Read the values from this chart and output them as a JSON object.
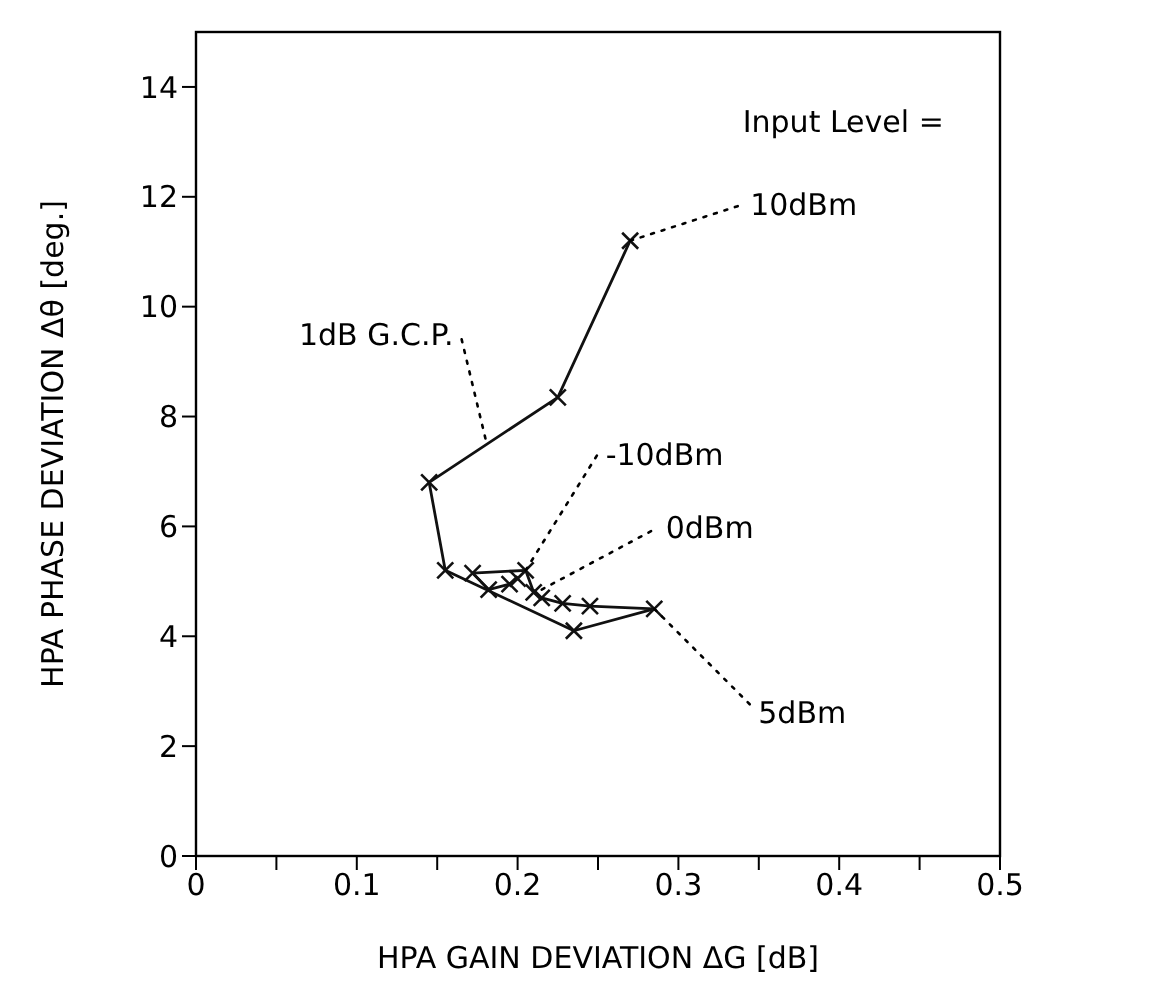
{
  "chart_data": {
    "type": "line",
    "xlabel": "HPA  GAIN  DEVIATION  ΔG  [dB]",
    "ylabel": "HPA  PHASE  DEVIATION  Δθ  [deg.]",
    "series": [
      {
        "color": "#111111",
        "x": [
          0.27,
          0.225,
          0.145,
          0.155,
          0.235,
          0.285,
          0.245,
          0.228,
          0.215,
          0.21,
          0.205,
          0.172,
          0.182,
          0.195,
          0.2
        ],
        "values": [
          11.2,
          8.35,
          6.8,
          5.2,
          4.1,
          4.5,
          4.55,
          4.6,
          4.7,
          4.8,
          5.2,
          5.15,
          4.85,
          4.95,
          5.05
        ]
      }
    ],
    "xlim": [
      0,
      0.5
    ],
    "xticks": [
      0,
      {
        "value": 0.05,
        "label": null
      },
      0.1,
      {
        "value": 0.15,
        "label": null
      },
      0.2,
      {
        "value": 0.25,
        "label": null
      },
      0.3,
      {
        "value": 0.35,
        "label": null
      },
      0.4,
      {
        "value": 0.45,
        "label": null
      },
      0.5
    ],
    "ylim": [
      0,
      15
    ],
    "yticks": [
      0,
      2,
      4,
      6,
      8,
      10,
      12,
      14
    ],
    "marker": "cross",
    "line_style": "solid",
    "annotations": [
      "Input Level =",
      {
        "text": "10dBm",
        "x": 0.27,
        "y": 11.2
      },
      {
        "text": "1dB G.C.P.",
        "x": 0.18,
        "y": 7.6
      },
      {
        "text": "-10dBm",
        "x": 0.205,
        "y": 5.2
      },
      {
        "text": "0dBm",
        "x": 0.215,
        "y": 4.85
      },
      {
        "text": "5dBm",
        "x": 0.285,
        "y": 4.5
      }
    ]
  }
}
